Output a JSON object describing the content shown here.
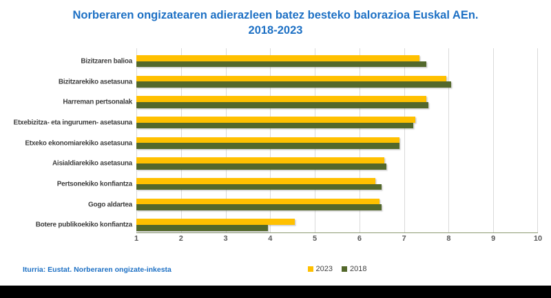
{
  "title": {
    "line1": "Norberaren ongizatearen adierazleen batez besteko balorazioa Euskal AEn.",
    "line2": "2018-2023"
  },
  "source_note": "Iturria: Eustat. Norberaren ongizate-inkesta",
  "colors": {
    "title_blue": "#1d70c4",
    "bar_2023": "#ffc000",
    "bar_2018": "#53682b",
    "gridline": "#d9d9d9",
    "axis_line": "#8c9a72",
    "tick_text": "#595959",
    "category_text": "#3f3f3f",
    "legend_text": "#404040",
    "background": "#ffffff",
    "letterbox": "#000000"
  },
  "chart_data": {
    "type": "bar",
    "orientation": "horizontal",
    "title": "Norberaren ongizatearen adierazleen batez besteko balorazioa Euskal AEn. 2018-2023",
    "categories": [
      "Bizitzaren balioa",
      "Bizitzarekiko asetasuna",
      "Harreman pertsonalak",
      "Etxebizitza- eta ingurumen- asetasuna",
      "Etxeko ekonomiarekiko asetasuna",
      "Aisialdiarekiko asetasuna",
      "Pertsonekiko konfiantza",
      "Gogo aldartea",
      "Botere publikoekiko konfiantza"
    ],
    "series": [
      {
        "name": "2023",
        "color": "#ffc000",
        "values": [
          7.35,
          7.95,
          7.5,
          7.25,
          6.9,
          6.55,
          6.35,
          6.45,
          4.55
        ]
      },
      {
        "name": "2018",
        "color": "#53682b",
        "values": [
          7.5,
          8.05,
          7.55,
          7.2,
          6.9,
          6.6,
          6.5,
          6.5,
          3.95
        ]
      }
    ],
    "xlim": [
      1,
      10
    ],
    "xticks": [
      1,
      2,
      3,
      4,
      5,
      6,
      7,
      8,
      9,
      10
    ],
    "xlabel": "",
    "ylabel": "",
    "grid": "vertical",
    "legend_position": "bottom"
  }
}
